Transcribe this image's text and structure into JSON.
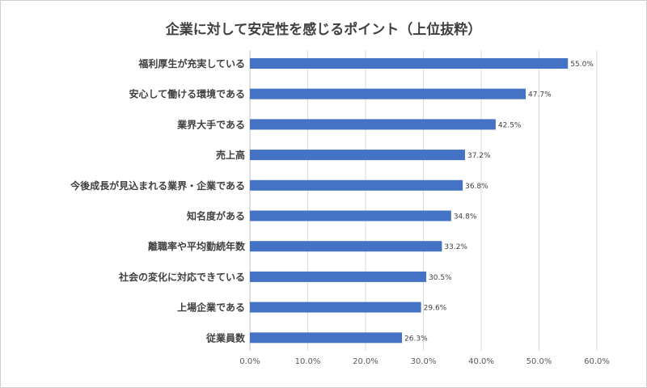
{
  "chart_data": {
    "type": "bar",
    "orientation": "horizontal",
    "title": "企業に対して安定性を感じるポイント（上位抜粋）",
    "categories": [
      "福利厚生が充実している",
      "安心して働ける環境である",
      "業界大手である",
      "売上高",
      "今後成長が見込まれる業界・企業である",
      "知名度がある",
      "離職率や平均勤続年数",
      "社会の変化に対応できている",
      "上場企業である",
      "従業員数"
    ],
    "values": [
      55.0,
      47.7,
      42.5,
      37.2,
      36.8,
      34.8,
      33.2,
      30.5,
      29.6,
      26.3
    ],
    "value_labels": [
      "55.0%",
      "47.7%",
      "42.5%",
      "37.2%",
      "36.8%",
      "34.8%",
      "33.2%",
      "30.5%",
      "29.6%",
      "26.3%"
    ],
    "xlim": [
      0,
      60
    ],
    "x_ticks": [
      "0.0%",
      "10.0%",
      "20.0%",
      "30.0%",
      "40.0%",
      "50.0%",
      "60.0%"
    ],
    "xlabel": "",
    "ylabel": "",
    "grid": true,
    "legend": "none",
    "bar_color": "#4472c4",
    "grid_color": "#d9d9d9"
  }
}
